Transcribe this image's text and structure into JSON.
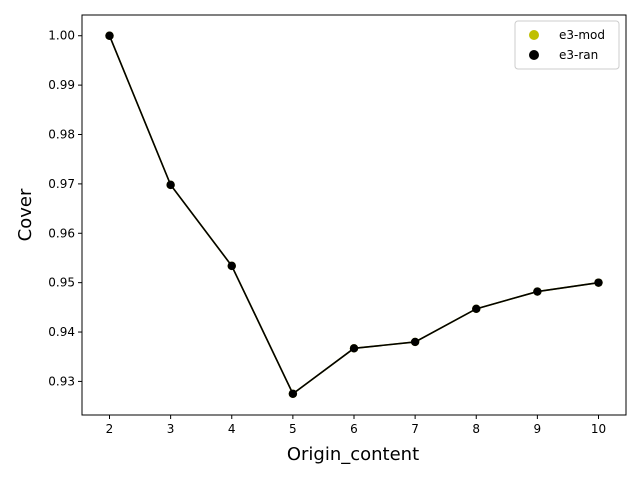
{
  "chart_data": {
    "type": "line",
    "title": "",
    "xlabel": "Origin_content",
    "ylabel": "Cover",
    "x": [
      2,
      3,
      4,
      5,
      6,
      7,
      8,
      9,
      10
    ],
    "xlim": [
      1.55,
      10.45
    ],
    "ylim": [
      0.9232,
      1.0042
    ],
    "xticks": [
      "2",
      "3",
      "4",
      "5",
      "6",
      "7",
      "8",
      "9",
      "10"
    ],
    "yticks": [
      "0.93",
      "0.94",
      "0.95",
      "0.96",
      "0.97",
      "0.98",
      "0.99",
      "1.00"
    ],
    "grid": false,
    "legend_position": "top-right",
    "series": [
      {
        "name": "e3-mod",
        "color": "#bfbf00",
        "values": [
          1.0,
          0.9698,
          0.9534,
          0.9275,
          0.9367,
          0.938,
          0.9447,
          0.9482,
          0.95
        ]
      },
      {
        "name": "e3-ran",
        "color": "#000000",
        "values": [
          1.0,
          0.9698,
          0.9534,
          0.9275,
          0.9367,
          0.938,
          0.9447,
          0.9482,
          0.95
        ]
      }
    ]
  }
}
